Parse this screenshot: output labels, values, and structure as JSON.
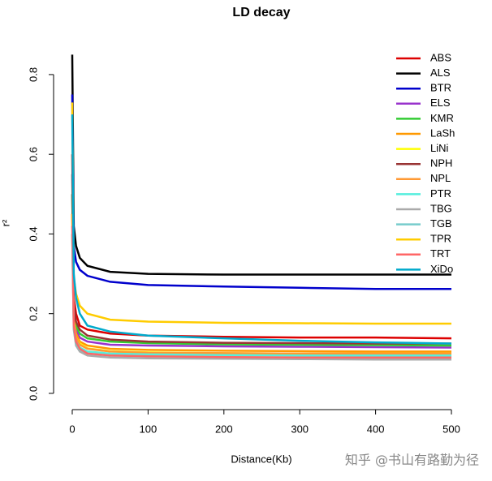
{
  "chart_data": {
    "type": "line",
    "title": "LD decay",
    "x_label": "Distance(Kb)",
    "y_label": "r²",
    "watermark": "知乎 @书山有路勤为径",
    "x": [
      0,
      2,
      5,
      10,
      20,
      50,
      100,
      200,
      300,
      400,
      500
    ],
    "xlim": [
      -20,
      520
    ],
    "xticks": [
      0,
      100,
      200,
      300,
      400,
      500
    ],
    "ylim": [
      -0.03,
      0.865
    ],
    "yticks": [
      {
        "value": 0,
        "label": "0.0"
      },
      0.2,
      0.4,
      0.6,
      0.8
    ],
    "legend": "top-right",
    "series": [
      {
        "name": "ABS",
        "color": "#dd0000",
        "values": [
          0.6,
          0.24,
          0.2,
          0.17,
          0.16,
          0.15,
          0.145,
          0.142,
          0.14,
          0.14,
          0.138
        ]
      },
      {
        "name": "ALS",
        "color": "#000000",
        "values": [
          0.85,
          0.42,
          0.37,
          0.34,
          0.32,
          0.305,
          0.3,
          0.298,
          0.298,
          0.298,
          0.298
        ]
      },
      {
        "name": "BTR",
        "color": "#0000cc",
        "values": [
          0.75,
          0.37,
          0.33,
          0.31,
          0.295,
          0.28,
          0.272,
          0.268,
          0.265,
          0.262,
          0.262
        ]
      },
      {
        "name": "ELS",
        "color": "#9933cc",
        "values": [
          0.5,
          0.2,
          0.16,
          0.14,
          0.13,
          0.122,
          0.12,
          0.118,
          0.117,
          0.116,
          0.115
        ]
      },
      {
        "name": "KMR",
        "color": "#33cc33",
        "values": [
          0.5,
          0.21,
          0.17,
          0.15,
          0.138,
          0.13,
          0.126,
          0.123,
          0.122,
          0.121,
          0.12
        ]
      },
      {
        "name": "LaSh",
        "color": "#ff9900",
        "values": [
          0.45,
          0.19,
          0.15,
          0.13,
          0.12,
          0.112,
          0.109,
          0.107,
          0.106,
          0.105,
          0.105
        ]
      },
      {
        "name": "LiNi",
        "color": "#ffff00",
        "values": [
          0.45,
          0.18,
          0.14,
          0.125,
          0.113,
          0.106,
          0.103,
          0.101,
          0.1,
          0.1,
          0.1
        ]
      },
      {
        "name": "NPH",
        "color": "#993333",
        "values": [
          0.55,
          0.22,
          0.18,
          0.16,
          0.145,
          0.135,
          0.13,
          0.127,
          0.126,
          0.125,
          0.125
        ]
      },
      {
        "name": "NPL",
        "color": "#ff9933",
        "values": [
          0.45,
          0.18,
          0.14,
          0.122,
          0.112,
          0.105,
          0.102,
          0.101,
          0.1,
          0.1,
          0.1
        ]
      },
      {
        "name": "PTR",
        "color": "#55eedd",
        "values": [
          0.4,
          0.17,
          0.13,
          0.115,
          0.105,
          0.1,
          0.098,
          0.096,
          0.095,
          0.095,
          0.095
        ]
      },
      {
        "name": "TBG",
        "color": "#aaaaaa",
        "values": [
          0.4,
          0.16,
          0.12,
          0.105,
          0.095,
          0.09,
          0.088,
          0.087,
          0.086,
          0.085,
          0.085
        ]
      },
      {
        "name": "TGB",
        "color": "#77cccc",
        "values": [
          0.4,
          0.165,
          0.125,
          0.11,
          0.1,
          0.095,
          0.093,
          0.091,
          0.09,
          0.09,
          0.09
        ]
      },
      {
        "name": "TPR",
        "color": "#ffcc00",
        "values": [
          0.73,
          0.29,
          0.25,
          0.22,
          0.2,
          0.185,
          0.18,
          0.177,
          0.176,
          0.175,
          0.175
        ]
      },
      {
        "name": "TRT",
        "color": "#ff6666",
        "values": [
          0.42,
          0.17,
          0.13,
          0.112,
          0.1,
          0.095,
          0.093,
          0.091,
          0.09,
          0.09,
          0.09
        ]
      },
      {
        "name": "XiDo",
        "color": "#00aacc",
        "values": [
          0.7,
          0.3,
          0.24,
          0.2,
          0.17,
          0.155,
          0.145,
          0.138,
          0.132,
          0.128,
          0.125
        ]
      }
    ]
  }
}
